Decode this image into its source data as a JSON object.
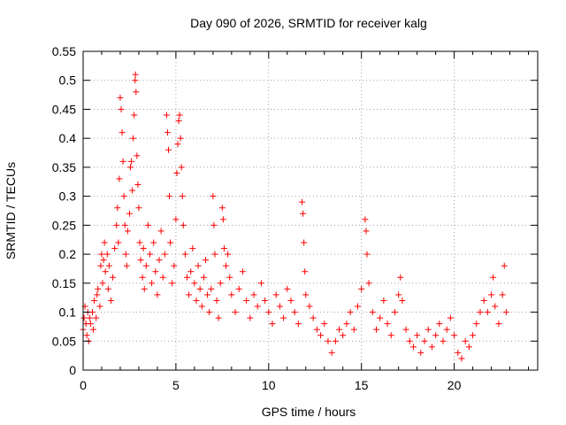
{
  "chart_data": {
    "type": "scatter",
    "title": "Day 090 of 2026, SRMTID for receiver kalg",
    "xlabel": "GPS time / hours",
    "ylabel": "SRMTID / TECUs",
    "xlim": [
      0,
      24.5
    ],
    "ylim": [
      0,
      0.55
    ],
    "x_ticks": [
      0,
      5,
      10,
      15,
      20
    ],
    "x_tick_labels": [
      "0",
      "5",
      "10",
      "15",
      "20"
    ],
    "y_ticks": [
      0,
      0.05,
      0.1,
      0.15,
      0.2,
      0.25,
      0.3,
      0.35,
      0.4,
      0.45,
      0.5,
      0.55
    ],
    "y_tick_labels": [
      "0",
      "0.05",
      "0.1",
      "0.15",
      "0.2",
      "0.25",
      "0.3",
      "0.35",
      "0.4",
      "0.45",
      "0.5",
      "0.55"
    ],
    "grid": true,
    "marker": "+",
    "color": "#ff0000",
    "series": [
      {
        "name": "SRMTID",
        "points": [
          [
            0.0,
            0.07
          ],
          [
            0.05,
            0.09
          ],
          [
            0.1,
            0.11
          ],
          [
            0.15,
            0.08
          ],
          [
            0.2,
            0.06
          ],
          [
            0.25,
            0.1
          ],
          [
            0.3,
            0.05
          ],
          [
            0.35,
            0.09
          ],
          [
            0.4,
            0.08
          ],
          [
            0.5,
            0.1
          ],
          [
            0.55,
            0.07
          ],
          [
            0.6,
            0.12
          ],
          [
            0.7,
            0.09
          ],
          [
            0.75,
            0.13
          ],
          [
            0.8,
            0.14
          ],
          [
            0.9,
            0.11
          ],
          [
            0.95,
            0.18
          ],
          [
            1.0,
            0.2
          ],
          [
            1.05,
            0.15
          ],
          [
            1.1,
            0.19
          ],
          [
            1.15,
            0.22
          ],
          [
            1.2,
            0.17
          ],
          [
            1.3,
            0.2
          ],
          [
            1.35,
            0.14
          ],
          [
            1.4,
            0.18
          ],
          [
            1.5,
            0.12
          ],
          [
            1.6,
            0.16
          ],
          [
            1.7,
            0.21
          ],
          [
            1.8,
            0.25
          ],
          [
            1.85,
            0.28
          ],
          [
            1.9,
            0.22
          ],
          [
            1.95,
            0.33
          ],
          [
            2.0,
            0.47
          ],
          [
            2.05,
            0.45
          ],
          [
            2.1,
            0.41
          ],
          [
            2.15,
            0.36
          ],
          [
            2.2,
            0.3
          ],
          [
            2.25,
            0.25
          ],
          [
            2.3,
            0.2
          ],
          [
            2.35,
            0.18
          ],
          [
            2.4,
            0.24
          ],
          [
            2.5,
            0.27
          ],
          [
            2.55,
            0.35
          ],
          [
            2.6,
            0.36
          ],
          [
            2.65,
            0.31
          ],
          [
            2.7,
            0.4
          ],
          [
            2.75,
            0.44
          ],
          [
            2.8,
            0.5
          ],
          [
            2.82,
            0.51
          ],
          [
            2.85,
            0.48
          ],
          [
            2.9,
            0.37
          ],
          [
            2.95,
            0.32
          ],
          [
            3.0,
            0.28
          ],
          [
            3.05,
            0.22
          ],
          [
            3.1,
            0.19
          ],
          [
            3.2,
            0.16
          ],
          [
            3.25,
            0.21
          ],
          [
            3.3,
            0.14
          ],
          [
            3.4,
            0.18
          ],
          [
            3.5,
            0.25
          ],
          [
            3.6,
            0.2
          ],
          [
            3.7,
            0.15
          ],
          [
            3.8,
            0.22
          ],
          [
            3.9,
            0.17
          ],
          [
            4.0,
            0.13
          ],
          [
            4.1,
            0.19
          ],
          [
            4.2,
            0.24
          ],
          [
            4.3,
            0.16
          ],
          [
            4.4,
            0.2
          ],
          [
            4.5,
            0.44
          ],
          [
            4.55,
            0.41
          ],
          [
            4.6,
            0.38
          ],
          [
            4.65,
            0.3
          ],
          [
            4.7,
            0.22
          ],
          [
            4.8,
            0.15
          ],
          [
            4.9,
            0.18
          ],
          [
            5.0,
            0.26
          ],
          [
            5.05,
            0.34
          ],
          [
            5.1,
            0.39
          ],
          [
            5.15,
            0.43
          ],
          [
            5.2,
            0.44
          ],
          [
            5.25,
            0.4
          ],
          [
            5.3,
            0.35
          ],
          [
            5.35,
            0.3
          ],
          [
            5.4,
            0.25
          ],
          [
            5.5,
            0.2
          ],
          [
            5.6,
            0.16
          ],
          [
            5.7,
            0.13
          ],
          [
            5.8,
            0.17
          ],
          [
            5.9,
            0.21
          ],
          [
            6.0,
            0.15
          ],
          [
            6.1,
            0.12
          ],
          [
            6.2,
            0.18
          ],
          [
            6.3,
            0.14
          ],
          [
            6.4,
            0.11
          ],
          [
            6.5,
            0.16
          ],
          [
            6.6,
            0.19
          ],
          [
            6.7,
            0.13
          ],
          [
            6.8,
            0.1
          ],
          [
            6.9,
            0.14
          ],
          [
            7.0,
            0.3
          ],
          [
            7.05,
            0.25
          ],
          [
            7.1,
            0.2
          ],
          [
            7.2,
            0.12
          ],
          [
            7.3,
            0.09
          ],
          [
            7.4,
            0.15
          ],
          [
            7.5,
            0.28
          ],
          [
            7.55,
            0.26
          ],
          [
            7.6,
            0.21
          ],
          [
            7.7,
            0.18
          ],
          [
            7.8,
            0.2
          ],
          [
            7.9,
            0.16
          ],
          [
            8.0,
            0.13
          ],
          [
            8.2,
            0.1
          ],
          [
            8.4,
            0.14
          ],
          [
            8.6,
            0.17
          ],
          [
            8.8,
            0.12
          ],
          [
            9.0,
            0.09
          ],
          [
            9.2,
            0.13
          ],
          [
            9.4,
            0.11
          ],
          [
            9.6,
            0.15
          ],
          [
            9.8,
            0.12
          ],
          [
            10.0,
            0.1
          ],
          [
            10.2,
            0.08
          ],
          [
            10.4,
            0.13
          ],
          [
            10.6,
            0.11
          ],
          [
            10.8,
            0.09
          ],
          [
            11.0,
            0.14
          ],
          [
            11.2,
            0.12
          ],
          [
            11.4,
            0.1
          ],
          [
            11.6,
            0.08
          ],
          [
            11.8,
            0.29
          ],
          [
            11.85,
            0.27
          ],
          [
            11.9,
            0.22
          ],
          [
            11.95,
            0.17
          ],
          [
            12.0,
            0.13
          ],
          [
            12.2,
            0.11
          ],
          [
            12.4,
            0.09
          ],
          [
            12.6,
            0.07
          ],
          [
            12.8,
            0.06
          ],
          [
            13.0,
            0.08
          ],
          [
            13.2,
            0.05
          ],
          [
            13.4,
            0.03
          ],
          [
            13.6,
            0.05
          ],
          [
            13.8,
            0.07
          ],
          [
            14.0,
            0.06
          ],
          [
            14.2,
            0.08
          ],
          [
            14.4,
            0.1
          ],
          [
            14.6,
            0.07
          ],
          [
            14.8,
            0.11
          ],
          [
            15.0,
            0.14
          ],
          [
            15.2,
            0.26
          ],
          [
            15.25,
            0.24
          ],
          [
            15.3,
            0.2
          ],
          [
            15.4,
            0.15
          ],
          [
            15.6,
            0.1
          ],
          [
            15.8,
            0.07
          ],
          [
            16.0,
            0.09
          ],
          [
            16.2,
            0.12
          ],
          [
            16.4,
            0.08
          ],
          [
            16.6,
            0.06
          ],
          [
            16.8,
            0.1
          ],
          [
            17.0,
            0.13
          ],
          [
            17.1,
            0.16
          ],
          [
            17.2,
            0.12
          ],
          [
            17.4,
            0.07
          ],
          [
            17.6,
            0.05
          ],
          [
            17.8,
            0.04
          ],
          [
            18.0,
            0.06
          ],
          [
            18.2,
            0.03
          ],
          [
            18.4,
            0.05
          ],
          [
            18.6,
            0.07
          ],
          [
            18.8,
            0.04
          ],
          [
            19.0,
            0.06
          ],
          [
            19.2,
            0.08
          ],
          [
            19.4,
            0.05
          ],
          [
            19.6,
            0.07
          ],
          [
            19.8,
            0.09
          ],
          [
            20.0,
            0.06
          ],
          [
            20.2,
            0.03
          ],
          [
            20.4,
            0.02
          ],
          [
            20.6,
            0.05
          ],
          [
            20.8,
            0.04
          ],
          [
            21.0,
            0.06
          ],
          [
            21.2,
            0.08
          ],
          [
            21.4,
            0.1
          ],
          [
            21.6,
            0.12
          ],
          [
            21.8,
            0.1
          ],
          [
            22.0,
            0.13
          ],
          [
            22.1,
            0.16
          ],
          [
            22.2,
            0.11
          ],
          [
            22.4,
            0.08
          ],
          [
            22.6,
            0.13
          ],
          [
            22.7,
            0.18
          ],
          [
            22.8,
            0.1
          ]
        ]
      }
    ]
  }
}
